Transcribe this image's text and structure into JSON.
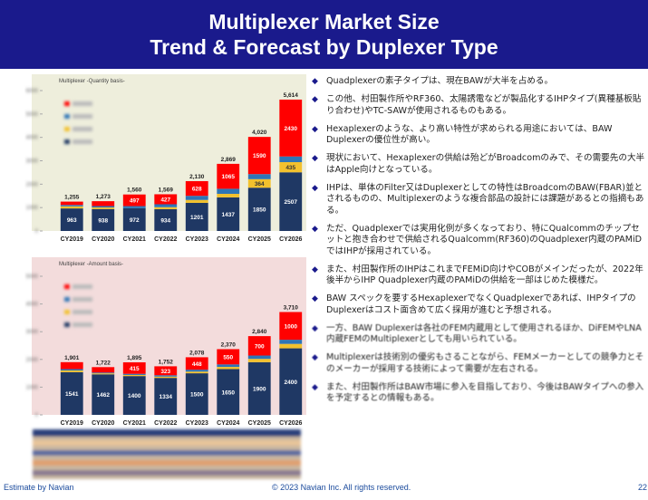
{
  "header": {
    "title_line1": "Multiplexer Market Size",
    "title_line2": "Trend & Forecast by Duplexer Type"
  },
  "chart_data": [
    {
      "type": "stacked_bar",
      "title": "Multiplexer -Quantity basis-",
      "categories": [
        "CY2019",
        "CY2020",
        "CY2021",
        "CY2022",
        "CY2023",
        "CY2024",
        "CY2025",
        "CY2026"
      ],
      "series": [
        {
          "color": "#1f3864",
          "values": [
            963,
            938,
            972,
            934,
            1201,
            1437,
            1850,
            2507
          ]
        },
        {
          "color": "#f2c12e",
          "values": [
            90,
            67,
            0,
            83,
            125,
            150,
            364,
            435
          ]
        },
        {
          "color": "#2e75b6",
          "values": [
            60,
            60,
            91,
            125,
            176,
            217,
            216,
            242
          ]
        },
        {
          "color": "#ff0000",
          "values": [
            142,
            208,
            497,
            427,
            628,
            1065,
            1590,
            2430
          ]
        }
      ],
      "total_labels": [
        "1,255",
        "1,273",
        "1,560",
        "1,569",
        "2,130",
        "2,869",
        "4,020",
        "5,614"
      ],
      "ylim": [
        0,
        6000
      ],
      "yticks": [
        0,
        1000,
        2000,
        3000,
        4000,
        5000,
        6000
      ],
      "background": "#eeeedc"
    },
    {
      "type": "stacked_bar",
      "title": "Multiplexer -Amount basis-",
      "categories": [
        "CY2019",
        "CY2020",
        "CY2021",
        "CY2022",
        "CY2023",
        "CY2024",
        "CY2025",
        "CY2026"
      ],
      "series": [
        {
          "color": "#1f3864",
          "values": [
            1541,
            1462,
            1400,
            1334,
            1500,
            1650,
            1900,
            2400
          ]
        },
        {
          "color": "#f2c12e",
          "values": [
            60,
            35,
            40,
            45,
            60,
            80,
            120,
            160
          ]
        },
        {
          "color": "#2e75b6",
          "values": [
            50,
            30,
            40,
            50,
            70,
            90,
            120,
            150
          ]
        },
        {
          "color": "#ff0000",
          "values": [
            250,
            195,
            415,
            323,
            448,
            550,
            700,
            1000
          ]
        }
      ],
      "total_labels": [
        "1,901",
        "1,722",
        "1,895",
        "1,752",
        "2,078",
        "2,370",
        "2,840",
        "3,710"
      ],
      "ylim": [
        0,
        5000
      ],
      "yticks": [
        0,
        1000,
        2000,
        3000,
        4000,
        5000
      ],
      "background": "#f3dcdc"
    }
  ],
  "bullets": [
    "Quadplexerの素子タイプは、現在BAWが大半を占める。",
    "この他、村田製作所やRF360、太陽誘電などが製品化するIHPタイプ(異種基板貼り合わせ)やTC-SAWが使用されるものもある。",
    "Hexaplexerのような、より高い特性が求められる用途においては、BAW Duplexerの優位性が高い。",
    "現状において、Hexaplexerの供給は殆どがBroadcomのみで、その需要先の大半はApple向けとなっている。",
    "IHPは、単体のFilter又はDuplexerとしての特性はBroadcomのBAW(FBAR)並とされるものの、Multiplexerのような複合部品の設計には課題があるとの指摘もある。",
    "ただ、Quadplexerでは実用化例が多くなっており、特にQualcommのチップセットと抱き合わせで供給されるQualcomm(RF360)のQuadplexer内蔵のPAMiDではIHPが採用されている。",
    "また、村田製作所のIHPはこれまでFEMiD向けやCOBがメインだったが、2022年後半からIHP Quadplexer内蔵のPAMiDの供給を一部はじめた模様だ。",
    "BAW スペックを要するHexaplexerでなくQuadplexerであれば、IHPタイプのDuplexerはコスト面含めて広く採用が進むと予想される。",
    "一方、BAW Duplexerは各社のFEM内蔵用として使用されるほか、DiFEMやLNA内蔵FEMのMultiplexerとしても用いられている。",
    "Multiplexerは技術別の優劣もさることながら、FEMメーカーとしての競争力とそのメーカーが採用する技術によって需要が左右される。",
    "また、村田製作所はBAW市場に参入を目指しており、今後はBAWタイプへの参入を予定するとの情報もある。"
  ],
  "footer": {
    "left": "Estimate by Navian",
    "center": "© 2023 Navian Inc. All rights reserved.",
    "page": "22"
  }
}
